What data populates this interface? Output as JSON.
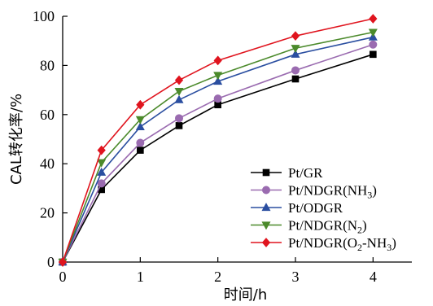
{
  "chart_data": {
    "type": "line",
    "xlabel": "时间/h",
    "ylabel": "CAL转化率/%",
    "xlim": [
      0,
      4.5
    ],
    "ylim": [
      0,
      100
    ],
    "x_ticks": [
      0,
      1,
      2,
      3,
      4
    ],
    "y_ticks": [
      0,
      20,
      40,
      60,
      80,
      100
    ],
    "grid": false,
    "legend_position": "bottom-right",
    "x": [
      0,
      0.5,
      1,
      1.5,
      2,
      3,
      4
    ],
    "series": [
      {
        "name": "Pt/GR",
        "name_parts": [
          [
            "Pt/GR",
            ""
          ]
        ],
        "color": "#000000",
        "marker": "square",
        "values": [
          0,
          29.5,
          45.5,
          55.5,
          64,
          74.5,
          84.5
        ]
      },
      {
        "name": "Pt/NDGR(NH3)",
        "name_parts": [
          [
            "Pt/NDGR(NH",
            ""
          ],
          [
            "3",
            "sub"
          ],
          [
            ")",
            ""
          ]
        ],
        "color": "#9a6bb0",
        "marker": "circle",
        "values": [
          0,
          32,
          48.5,
          58.5,
          66.5,
          78,
          88.5
        ]
      },
      {
        "name": "Pt/ODGR",
        "name_parts": [
          [
            "Pt/ODGR",
            ""
          ]
        ],
        "color": "#2a4ea0",
        "marker": "triangle-up",
        "values": [
          0,
          36.5,
          55,
          66,
          73.5,
          84.5,
          91.5
        ]
      },
      {
        "name": "Pt/NDGR(N2)",
        "name_parts": [
          [
            "Pt/NDGR(N",
            ""
          ],
          [
            "2",
            "sub"
          ],
          [
            ")",
            ""
          ]
        ],
        "color": "#4b8a2b",
        "marker": "triangle-down",
        "values": [
          0,
          40.5,
          58,
          69.5,
          76,
          87,
          93.5
        ]
      },
      {
        "name": "Pt/NDGR(O2-NH3)",
        "name_parts": [
          [
            "Pt/NDGR(O",
            ""
          ],
          [
            "2",
            "sub"
          ],
          [
            "-NH",
            ""
          ],
          [
            "3",
            "sub"
          ],
          [
            ")",
            ""
          ]
        ],
        "color": "#e0141e",
        "marker": "diamond",
        "values": [
          0,
          45.5,
          64,
          74,
          82,
          92,
          99
        ]
      }
    ]
  }
}
